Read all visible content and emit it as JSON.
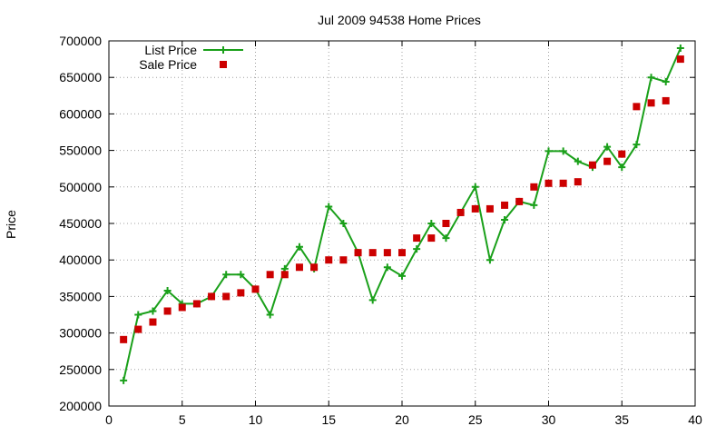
{
  "chart_data": {
    "type": "line",
    "title": "Jul 2009 94538 Home Prices",
    "xlabel": "",
    "ylabel": "Price",
    "xlim": [
      0,
      40
    ],
    "ylim": [
      200000,
      700000
    ],
    "xticks": [
      0,
      5,
      10,
      15,
      20,
      25,
      30,
      35,
      40
    ],
    "yticks": [
      200000,
      250000,
      300000,
      350000,
      400000,
      450000,
      500000,
      550000,
      600000,
      650000,
      700000
    ],
    "grid": true,
    "legend_position": "top-left",
    "series": [
      {
        "name": "List Price",
        "style": "line-with-plus-markers",
        "color": "#1aa01a",
        "x": [
          1,
          2,
          3,
          4,
          5,
          6,
          7,
          8,
          9,
          10,
          11,
          12,
          13,
          14,
          15,
          16,
          17,
          18,
          19,
          20,
          21,
          22,
          23,
          24,
          25,
          26,
          27,
          28,
          29,
          30,
          31,
          32,
          33,
          34,
          35,
          36,
          37,
          38,
          39
        ],
        "values": [
          235000,
          325000,
          330000,
          358000,
          340000,
          340000,
          350000,
          380000,
          380000,
          360000,
          325000,
          388000,
          418000,
          388000,
          473000,
          450000,
          410000,
          345000,
          390000,
          378000,
          415000,
          450000,
          430000,
          465000,
          500000,
          400000,
          455000,
          480000,
          475000,
          549000,
          549000,
          535000,
          527000,
          555000,
          527000,
          558000,
          650000,
          644000,
          690000
        ]
      },
      {
        "name": "Sale Price",
        "style": "square-markers",
        "color": "#cc0000",
        "x": [
          1,
          2,
          3,
          4,
          5,
          6,
          7,
          8,
          9,
          10,
          11,
          12,
          13,
          14,
          15,
          16,
          17,
          18,
          19,
          20,
          21,
          22,
          23,
          24,
          25,
          26,
          27,
          28,
          29,
          30,
          31,
          32,
          33,
          34,
          35,
          36,
          37,
          38,
          39
        ],
        "values": [
          291000,
          305000,
          315000,
          330000,
          335000,
          340000,
          350000,
          350000,
          355000,
          360000,
          380000,
          380000,
          390000,
          390000,
          400000,
          400000,
          410000,
          410000,
          410000,
          410000,
          430000,
          430000,
          450000,
          465000,
          470000,
          470000,
          475000,
          480000,
          500000,
          505000,
          505000,
          507000,
          530000,
          535000,
          545000,
          610000,
          615000,
          618000,
          675000
        ]
      }
    ]
  }
}
